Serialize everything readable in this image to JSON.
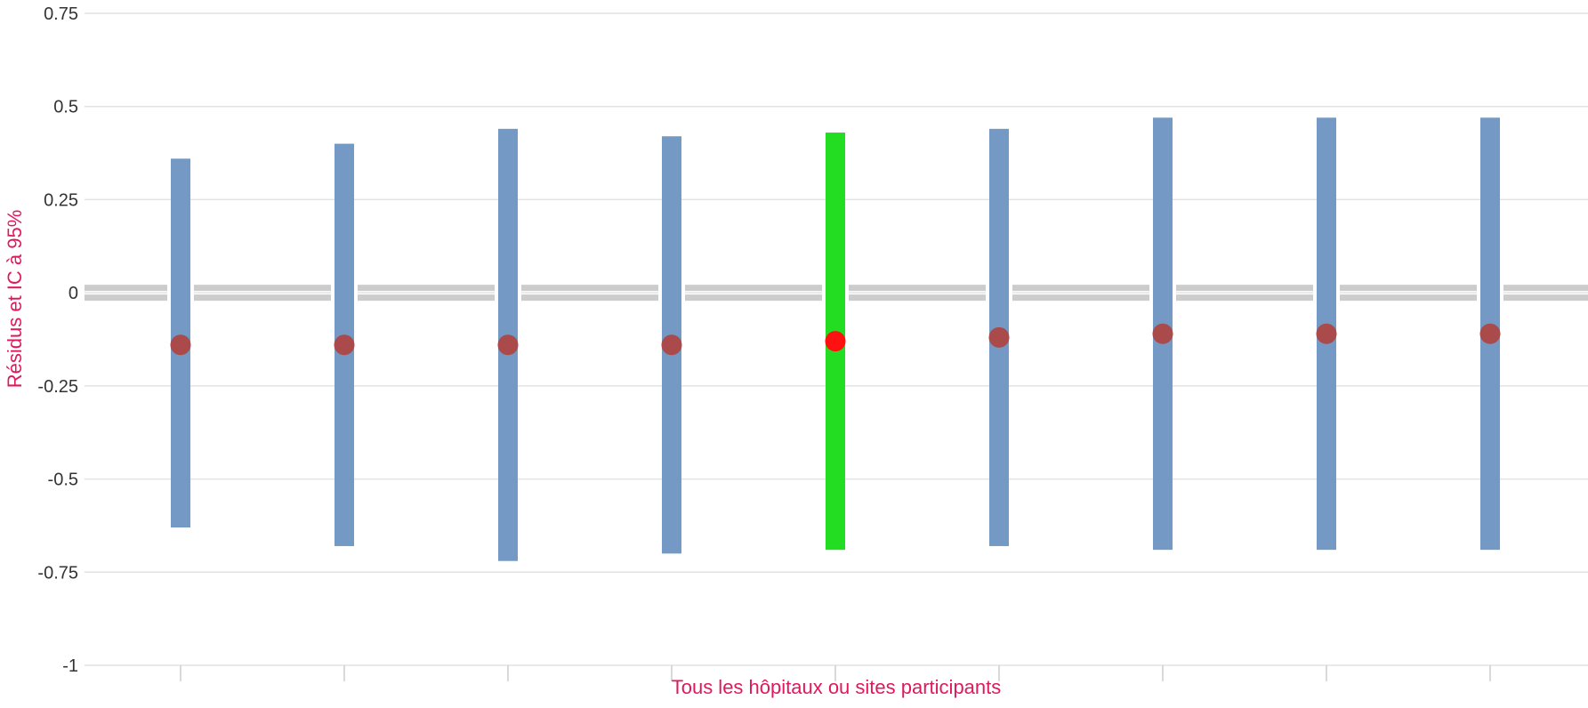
{
  "chart_data": {
    "type": "errorbar",
    "title": "",
    "xlabel": "Tous les hôpitaux ou sites participants",
    "ylabel": "Résidus et IC à 95%",
    "ylim": [
      -1,
      0.75
    ],
    "yticks": [
      0.75,
      0.5,
      0.25,
      0,
      -0.25,
      -0.5,
      -0.75,
      -1
    ],
    "ytick_labels": [
      "0.75",
      "0.5",
      "0.25",
      "0",
      "-0.25",
      "-0.5",
      "-0.75",
      "-1"
    ],
    "reference_line": 0,
    "grid": true,
    "legend": "none",
    "points": [
      {
        "value": -0.14,
        "lower": -0.63,
        "upper": 0.36,
        "highlight": false
      },
      {
        "value": -0.14,
        "lower": -0.68,
        "upper": 0.4,
        "highlight": false
      },
      {
        "value": -0.14,
        "lower": -0.72,
        "upper": 0.44,
        "highlight": false
      },
      {
        "value": -0.14,
        "lower": -0.7,
        "upper": 0.42,
        "highlight": false
      },
      {
        "value": -0.13,
        "lower": -0.69,
        "upper": 0.43,
        "highlight": true
      },
      {
        "value": -0.12,
        "lower": -0.68,
        "upper": 0.44,
        "highlight": false
      },
      {
        "value": -0.11,
        "lower": -0.69,
        "upper": 0.47,
        "highlight": false
      },
      {
        "value": -0.11,
        "lower": -0.69,
        "upper": 0.47,
        "highlight": false
      },
      {
        "value": -0.11,
        "lower": -0.69,
        "upper": 0.47,
        "highlight": false
      }
    ]
  },
  "colors": {
    "bar": "#7399c4",
    "bar_highlight": "#22dd22",
    "point": "#aa4a4a",
    "point_highlight": "#ff1111",
    "axis_title": "#e0185d",
    "grid": "#e2e2e2",
    "reference": "#cccccc",
    "tick_mark": "#cccccc"
  }
}
